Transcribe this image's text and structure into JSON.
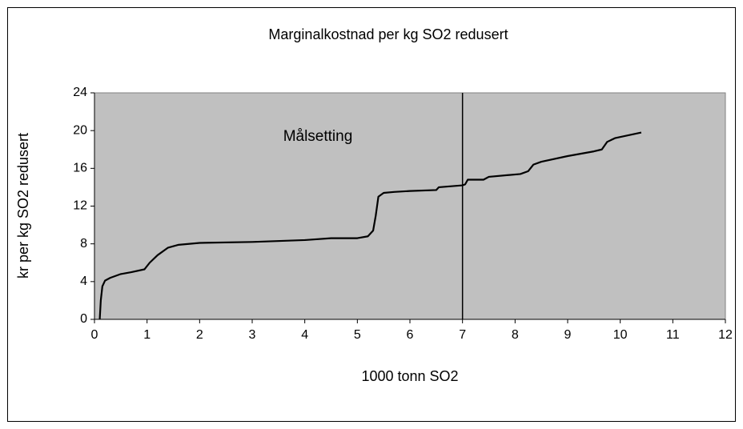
{
  "chart_data": {
    "type": "line",
    "title": "Marginalkostnad per kg SO2 redusert",
    "x_label": "1000  tonn SO2",
    "y_label": "kr per kg SO2 redusert",
    "annotation": "Målsetting",
    "target_line": 7,
    "x": [
      0.1,
      0.12,
      0.15,
      0.2,
      0.3,
      0.5,
      0.7,
      0.95,
      1.05,
      1.2,
      1.4,
      1.6,
      2,
      3,
      4,
      4.5,
      5,
      5.2,
      5.3,
      5.35,
      5.4,
      5.5,
      5.7,
      6,
      6.5,
      6.55,
      7,
      7.05,
      7.1,
      7.4,
      7.5,
      8.1,
      8.25,
      8.35,
      8.5,
      9,
      9.5,
      9.65,
      9.75,
      9.9,
      10.4
    ],
    "values": [
      0,
      2,
      3.5,
      4.1,
      4.4,
      4.8,
      5.0,
      5.3,
      6.0,
      6.8,
      7.6,
      7.9,
      8.1,
      8.2,
      8.4,
      8.6,
      8.6,
      8.8,
      9.4,
      11,
      13,
      13.4,
      13.5,
      13.6,
      13.7,
      14.0,
      14.2,
      14.3,
      14.8,
      14.8,
      15.1,
      15.4,
      15.7,
      16.4,
      16.7,
      17.3,
      17.8,
      18,
      18.8,
      19.2,
      19.8
    ],
    "color": "#000000",
    "plot_background": "#c0c0c0",
    "xlim": [
      0,
      12
    ],
    "xticks": [
      0,
      1,
      2,
      3,
      4,
      5,
      6,
      7,
      8,
      9,
      10,
      11,
      12
    ],
    "ylim": [
      0,
      24
    ],
    "yticks": [
      0,
      4,
      8,
      12,
      16,
      20,
      24
    ],
    "grid": false
  }
}
